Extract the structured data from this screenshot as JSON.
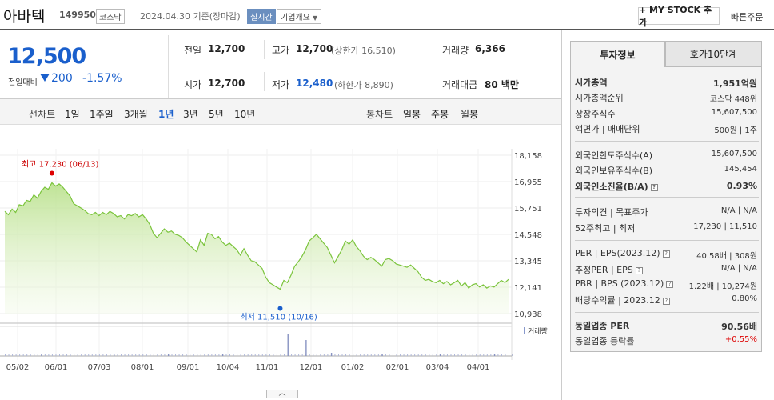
{
  "header": {
    "title": "아바텍",
    "code": "149950",
    "market": "코스닥",
    "date": "2024.04.30 기준(장마감)",
    "live": "실시간",
    "overview": "기업개요",
    "mystock": "+ MY STOCK 추가",
    "quick_order": "빠른주문"
  },
  "price": {
    "current": "12,500",
    "change_label": "전일대비",
    "change": "200",
    "change_pct": "-1.57%"
  },
  "summary": {
    "prev_close_label": "전일",
    "prev_close": "12,700",
    "high_label": "고가",
    "high": "12,700",
    "upper_limit": "(상한가 16,510)",
    "volume_label": "거래량",
    "volume": "6,366",
    "open_label": "시가",
    "open": "12,700",
    "low_label": "저가",
    "low": "12,480",
    "lower_limit": "(하한가 8,890)",
    "amount_label": "거래대금",
    "amount": "80 백만"
  },
  "toolbar": {
    "line_label": "선차트",
    "periods": [
      "1일",
      "1주일",
      "3개월",
      "1년",
      "3년",
      "5년",
      "10년"
    ],
    "candle_label": "봉차트",
    "candles": [
      "일봉",
      "주봉",
      "월봉"
    ]
  },
  "chart_data": {
    "type": "area",
    "y_ticks": [
      "18,158",
      "16,955",
      "15,751",
      "14,548",
      "13,345",
      "12,141",
      "10,938"
    ],
    "ylim": [
      10938,
      18158
    ],
    "x_ticks": [
      "05/02",
      "06/01",
      "07/03",
      "08/01",
      "09/01",
      "10/04",
      "11/01",
      "12/01",
      "01/02",
      "02/01",
      "03/04",
      "04/01"
    ],
    "high_annotation": "최고 17,230 (06/13)",
    "low_annotation": "최저 11,510 (10/16)",
    "volume_legend": "거래량",
    "series": [
      {
        "values": [
          15600,
          15450,
          15700,
          15550,
          15900,
          15850,
          16100,
          16050,
          16350,
          16200,
          16500,
          16700,
          16600,
          16900,
          16750,
          16850,
          16700,
          16500,
          16300,
          15950,
          15850,
          15750,
          15650,
          15500,
          15450,
          15550,
          15400,
          15550,
          15450,
          15600,
          15500,
          15350,
          15400,
          15250,
          15450,
          15400,
          15500,
          15350,
          15450,
          15250,
          15000,
          14600,
          14400,
          14600,
          14800,
          14650,
          14700,
          14550,
          14500,
          14400,
          14200,
          14050,
          13900,
          13750,
          14300,
          14050,
          14600,
          14550,
          14350,
          14450,
          14200,
          14050,
          14150,
          14000,
          13850,
          13600,
          13900,
          13600,
          13350,
          13300,
          13150,
          13000,
          12600,
          12350,
          12250,
          12150,
          12050,
          12450,
          12350,
          12700,
          13100,
          13300,
          13550,
          13850,
          14250,
          14400,
          14550,
          14350,
          14150,
          13950,
          13600,
          13250,
          13550,
          13850,
          14250,
          14100,
          14300,
          14000,
          13800,
          13550,
          13400,
          13500,
          13400,
          13250,
          13100,
          13400,
          13450,
          13350,
          13200,
          13150,
          13100,
          13050,
          13150,
          13000,
          12850,
          12600,
          12450,
          12500,
          12400,
          12350,
          12450,
          12300,
          12400,
          12250,
          12350,
          12450,
          12200,
          12350,
          12100,
          12250,
          12300,
          12150,
          12250,
          12100,
          12200,
          12150,
          12300,
          12450,
          12350,
          12500
        ]
      }
    ],
    "volume_bars": [
      {
        "i": 78,
        "h": 28
      },
      {
        "i": 83,
        "h": 20
      },
      {
        "i": 90,
        "h": 4
      },
      {
        "i": 104,
        "h": 3
      },
      {
        "i": 30,
        "h": 3
      },
      {
        "i": 60,
        "h": 2
      },
      {
        "i": 45,
        "h": 2
      },
      {
        "i": 10,
        "h": 2
      },
      {
        "i": 120,
        "h": 2
      },
      {
        "i": 135,
        "h": 2
      },
      {
        "i": 140,
        "h": 3
      }
    ]
  },
  "panel": {
    "tab_active": "투자정보",
    "tab_other": "호가10단계",
    "rows": [
      {
        "label": "시가총액",
        "value": "1,951억원",
        "bold": true
      },
      {
        "label": "시가총액순위",
        "value": "코스닥 448위"
      },
      {
        "label": "상장주식수",
        "value": "15,607,500"
      },
      {
        "label": "액면가 | 매매단위",
        "value": "500원 | 1주"
      },
      {
        "label": "외국인한도주식수(A)",
        "value": "15,607,500"
      },
      {
        "label": "외국인보유주식수(B)",
        "value": "145,454"
      },
      {
        "label": "외국인소진율(B/A)",
        "value": "0.93%",
        "bold": true,
        "q": true
      },
      {
        "label": "투자의견 | 목표주가",
        "value": "N/A | N/A"
      },
      {
        "label": "52주최고 | 최저",
        "value": "17,230 | 11,510"
      },
      {
        "label": "PER | EPS(2023.12)",
        "value": "40.58배 | 308원",
        "q": true
      },
      {
        "label": "추정PER | EPS",
        "value": "N/A | N/A",
        "q": true
      },
      {
        "label": "PBR | BPS (2023.12)",
        "value": "1.22배 | 10,274원",
        "q": true
      },
      {
        "label": "배당수익률 | 2023.12",
        "value": "0.80%",
        "q": true
      },
      {
        "label": "동일업종 PER",
        "value": "90.56배",
        "bold": true
      },
      {
        "label": "동일업종 등락률",
        "value": "+0.55%",
        "red": true
      }
    ]
  },
  "collapse": "︿"
}
